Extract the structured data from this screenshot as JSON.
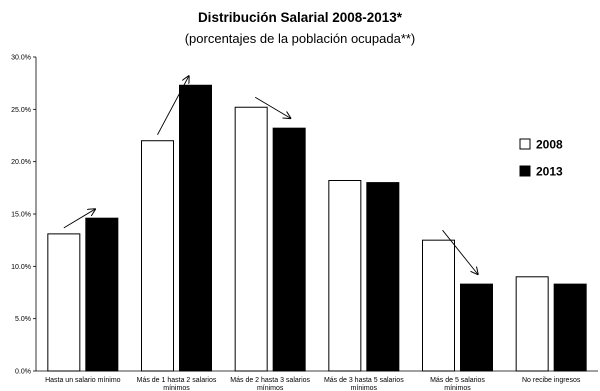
{
  "chart_data": {
    "type": "bar",
    "title": "Distribución Salarial 2008-2013*",
    "subtitle": "(porcentajes de la población ocupada**)",
    "xlabel": "",
    "ylabel": "",
    "ylim": [
      0,
      30
    ],
    "y_ticks": [
      "0.0%",
      "5.0%",
      "10.0%",
      "15.0%",
      "20.0%",
      "25.0%",
      "30.0%"
    ],
    "categories": [
      [
        "Hasta un salario mínimo"
      ],
      [
        "Más de 1 hasta 2 salarios",
        "mínimos"
      ],
      [
        "Más de 2 hasta 3 salarios",
        "mínimos"
      ],
      [
        "Más de 3 hasta 5 salarios",
        "mínimos"
      ],
      [
        "Más de 5 salarios",
        "mínimos"
      ],
      [
        "No recibe ingresos"
      ]
    ],
    "series": [
      {
        "name": "2008",
        "color": "#ffffff",
        "values": [
          13.1,
          22.0,
          25.2,
          18.2,
          12.5,
          9.0
        ]
      },
      {
        "name": "2013",
        "color": "#000000",
        "values": [
          14.6,
          27.3,
          23.2,
          18.0,
          8.3,
          8.3
        ]
      }
    ],
    "legend_position": "right",
    "grid": false,
    "annotations": [
      {
        "type": "arrow",
        "category_index": 0,
        "direction": "up"
      },
      {
        "type": "arrow",
        "category_index": 1,
        "direction": "up"
      },
      {
        "type": "arrow",
        "category_index": 2,
        "direction": "down"
      },
      {
        "type": "arrow",
        "category_index": 4,
        "direction": "down"
      }
    ]
  }
}
